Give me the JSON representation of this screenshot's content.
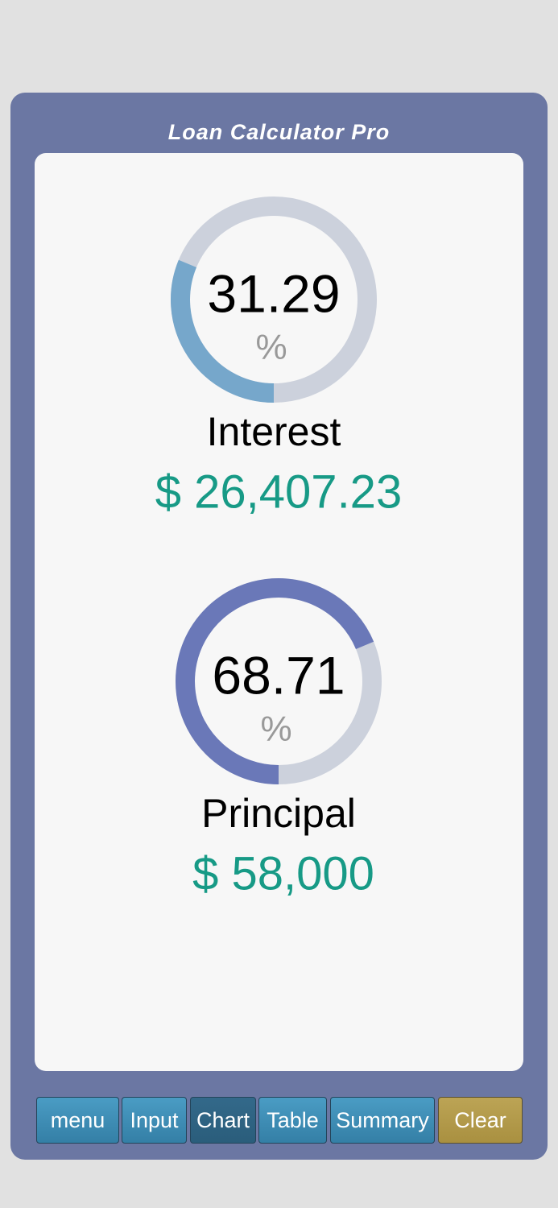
{
  "header": {
    "title": "Loan Calculator Pro"
  },
  "gauges": [
    {
      "value": 31.29,
      "unit": "%",
      "label": "Interest",
      "amount": "$ 26,407.23",
      "color": "#76a7cb"
    },
    {
      "value": 68.71,
      "unit": "%",
      "label": "Principal",
      "amount": "$ 58,000",
      "color": "#6a78b8"
    }
  ],
  "toolbar": {
    "buttons": [
      "menu",
      "Input",
      "Chart",
      "Table",
      "Summary",
      "Clear"
    ],
    "active": "Chart"
  }
}
